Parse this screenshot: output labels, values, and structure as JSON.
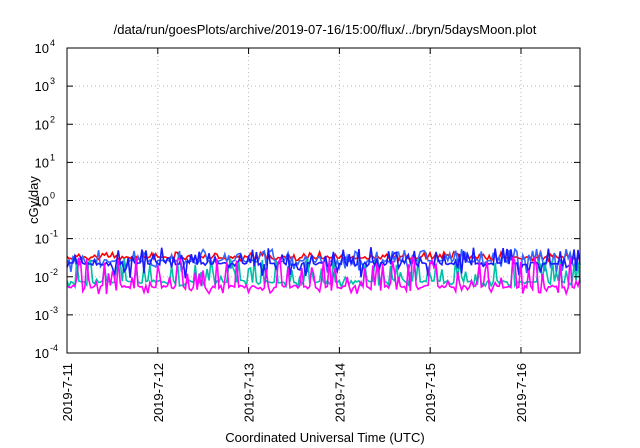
{
  "chart_data": {
    "type": "line",
    "title": "/data/run/goesPlots/archive/2019-07-16/15:00/flux/../bryn/5daysMoon.plot",
    "xlabel": "Coordinated Universal Time (UTC)",
    "ylabel": "cGy/day",
    "yscale": "log",
    "ylim": [
      0.0001,
      10000
    ],
    "xlim": [
      0,
      5.65
    ],
    "grid": true,
    "legend": "none",
    "yticks": [
      {
        "value": 0.0001,
        "base": "10",
        "exp": "-4"
      },
      {
        "value": 0.001,
        "base": "10",
        "exp": "-3"
      },
      {
        "value": 0.01,
        "base": "10",
        "exp": "-2"
      },
      {
        "value": 0.1,
        "base": "10",
        "exp": "-1"
      },
      {
        "value": 1,
        "base": "10",
        "exp": "0"
      },
      {
        "value": 10,
        "base": "10",
        "exp": "1"
      },
      {
        "value": 100,
        "base": "10",
        "exp": "2"
      },
      {
        "value": 1000,
        "base": "10",
        "exp": "3"
      },
      {
        "value": 10000,
        "base": "10",
        "exp": "4"
      }
    ],
    "xticks": [
      {
        "value": 0,
        "label": "2019-7-11"
      },
      {
        "value": 1,
        "label": "2019-7-12"
      },
      {
        "value": 2,
        "label": "2019-7-13"
      },
      {
        "value": 3,
        "label": "2019-7-14"
      },
      {
        "value": 4,
        "label": "2019-7-15"
      },
      {
        "value": 5,
        "label": "2019-7-16"
      }
    ],
    "series": [
      {
        "color": "#ff0000",
        "base": 0.032,
        "spike": 0.045,
        "dip": 0.026
      },
      {
        "color": "#3366ff",
        "base": 0.026,
        "spike": 0.055,
        "dip": 0.012
      },
      {
        "color": "#00bfa5",
        "base": 0.0075,
        "spike": 0.03,
        "dip": 0.0055
      },
      {
        "color": "#1a1aff",
        "base": 0.022,
        "spike": 0.06,
        "dip": 0.008
      },
      {
        "color": "#ff00ff",
        "base": 0.0055,
        "spike": 0.035,
        "dip": 0.0035
      }
    ]
  }
}
